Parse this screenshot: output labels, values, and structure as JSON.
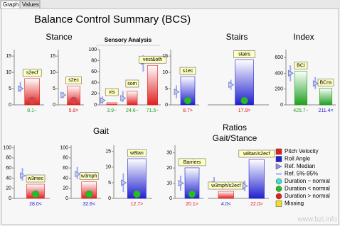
{
  "tabs": [
    "Graph",
    "Values"
  ],
  "title": "Balance Control Summary (BCS)",
  "sections": [
    "Stance",
    "Sensory Analysis",
    "Stairs",
    "Index",
    "Gait"
  ],
  "ratios_title": [
    "Ratios",
    "Gait/Stance"
  ],
  "watermark": "www.bzi.info",
  "legend": [
    {
      "label": "Pitch Velocity",
      "color": "#e02020",
      "symbol": "square"
    },
    {
      "label": "Roll Angle",
      "color": "#2020d0",
      "symbol": "square"
    },
    {
      "label": "Ref. Median",
      "color": "#9090e0",
      "symbol": "triangle"
    },
    {
      "label": "Ref. 5%-95%",
      "color": "#a0a8f0",
      "symbol": "line"
    },
    {
      "label": "Duration ~ normal",
      "color": "#40e0d0",
      "symbol": "circle"
    },
    {
      "label": "Duration < normal",
      "color": "#20c020",
      "symbol": "circle"
    },
    {
      "label": "Duration > normal",
      "color": "#e02020",
      "symbol": "circle"
    },
    {
      "label": "Missing",
      "color": "#f0e020",
      "symbol": "square"
    }
  ],
  "chart_data": [
    {
      "type": "bar",
      "categories": [
        "s2ecf"
      ],
      "values": [
        8.1
      ],
      "value_labels": [
        "8.1~"
      ],
      "label_colors": [
        "#20a020"
      ],
      "colors": [
        "#e02020"
      ],
      "marker_colors": [
        "#e04040"
      ],
      "reference": [
        [
          4,
          5,
          7
        ]
      ],
      "ylim": [
        0,
        17
      ],
      "yticks": [
        0,
        5,
        10,
        15
      ]
    },
    {
      "type": "bar",
      "categories": [
        "s2ec"
      ],
      "values": [
        5.8
      ],
      "value_labels": [
        "5.8>"
      ],
      "label_colors": [
        "#e02020"
      ],
      "colors": [
        "#e02020"
      ],
      "marker_colors": [
        "#e04040"
      ],
      "reference": [
        [
          2,
          3,
          4
        ]
      ],
      "ylim": [
        0,
        17
      ],
      "yticks": [
        0,
        5,
        10,
        15
      ]
    },
    {
      "type": "bar",
      "categories": [
        "vis",
        "som",
        "vest&oth"
      ],
      "values": [
        3.9,
        24.6,
        71.5
      ],
      "value_labels": [
        "3.9~",
        "24.6~",
        "71.5~"
      ],
      "label_colors": [
        "#20a020",
        "#20a020",
        "#20a020"
      ],
      "colors": [
        "#e02020",
        "#e02020",
        "#e02020"
      ],
      "marker_colors": [
        null,
        null,
        null
      ],
      "reference": [
        [
          2,
          8,
          15
        ],
        [
          5,
          12,
          25
        ],
        [
          60,
          78,
          90
        ]
      ],
      "ylim": [
        0,
        100
      ],
      "yticks": [
        0,
        20,
        40,
        60,
        80,
        100
      ]
    },
    {
      "type": "bar",
      "categories": [
        "s1ec"
      ],
      "values": [
        8.7
      ],
      "value_labels": [
        "8.7>"
      ],
      "label_colors": [
        "#e02020"
      ],
      "colors": [
        "#2020d0"
      ],
      "marker_colors": [
        "#20c020"
      ],
      "reference": [
        [
          2,
          4,
          6
        ]
      ],
      "ylim": [
        0,
        17
      ],
      "yticks": [
        0,
        5,
        10,
        15
      ]
    },
    {
      "type": "bar",
      "categories": [
        "stairs"
      ],
      "values": [
        17.9
      ],
      "value_labels": [
        "17.9>"
      ],
      "label_colors": [
        "#e02020"
      ],
      "colors": [
        "#2020d0"
      ],
      "marker_colors": [
        "#20c020"
      ],
      "reference": [
        [
          6,
          8,
          10
        ]
      ],
      "ylim": [
        0,
        22
      ]
    },
    {
      "type": "bar",
      "categories": [
        "BCI",
        "BCns"
      ],
      "values": [
        425.7,
        211.4
      ],
      "value_labels": [
        "425.7~",
        "211.4<"
      ],
      "label_colors": [
        "#20a020",
        "#2020d0"
      ],
      "colors": [
        "#20a020",
        "#20a020"
      ],
      "marker_colors": [
        null,
        null
      ],
      "reference": [
        [
          300,
          400,
          500
        ],
        [
          200,
          270,
          350
        ]
      ],
      "ylim": [
        0,
        700
      ],
      "yticks": [
        0,
        200,
        400,
        600
      ]
    },
    {
      "type": "bar",
      "categories": [
        "w3mec"
      ],
      "values": [
        28.0
      ],
      "value_labels": [
        "28.0<"
      ],
      "label_colors": [
        "#2020d0"
      ],
      "colors": [
        "#e02020"
      ],
      "marker_colors": [
        "#20c020"
      ],
      "reference": [
        [
          35,
          45,
          60
        ]
      ],
      "ylim": [
        0,
        105
      ],
      "yticks": [
        0,
        20,
        40,
        60,
        80,
        100
      ]
    },
    {
      "type": "bar",
      "categories": [
        "w3mph"
      ],
      "values": [
        32.6
      ],
      "value_labels": [
        "32.6<"
      ],
      "label_colors": [
        "#2020d0"
      ],
      "colors": [
        "#e02020"
      ],
      "marker_colors": [
        "#20c020"
      ],
      "reference": [
        [
          38,
          48,
          62
        ]
      ],
      "ylim": [
        0,
        105
      ],
      "yticks": [
        0,
        20,
        40,
        60,
        80,
        100
      ]
    },
    {
      "type": "bar",
      "categories": [
        "w8tan"
      ],
      "values": [
        12.7
      ],
      "value_labels": [
        "12.7>"
      ],
      "label_colors": [
        "#e02020"
      ],
      "colors": [
        "#2020d0"
      ],
      "marker_colors": [
        "#20c020"
      ],
      "reference": [
        [
          2,
          5,
          8
        ]
      ],
      "ylim": [
        0,
        17
      ],
      "yticks": [
        0,
        5,
        10,
        15
      ]
    },
    {
      "type": "bar",
      "categories": [
        "Barriers"
      ],
      "values": [
        20.1
      ],
      "value_labels": [
        "20.1>"
      ],
      "label_colors": [
        "#e02020"
      ],
      "colors": [
        "#2020d0"
      ],
      "marker_colors": [
        "#20c020"
      ],
      "reference": [
        [
          5,
          10,
          15
        ]
      ],
      "ylim": [
        0,
        35
      ],
      "yticks": [
        0,
        10,
        20,
        30
      ]
    },
    {
      "type": "bar",
      "categories": [
        "w3mph/s2ecf",
        "w8tan/s2ecf"
      ],
      "values": [
        4.0,
        22.0
      ],
      "value_labels": [
        "4.0<",
        "22.0>"
      ],
      "label_colors": [
        "#2020d0",
        "#e02020"
      ],
      "colors": [
        "#e02020",
        "#2020d0"
      ],
      "marker_colors": [
        null,
        null
      ],
      "reference": [
        [
          5,
          8,
          12
        ],
        [
          4,
          7,
          10
        ]
      ],
      "ylim": [
        0,
        30
      ]
    }
  ]
}
